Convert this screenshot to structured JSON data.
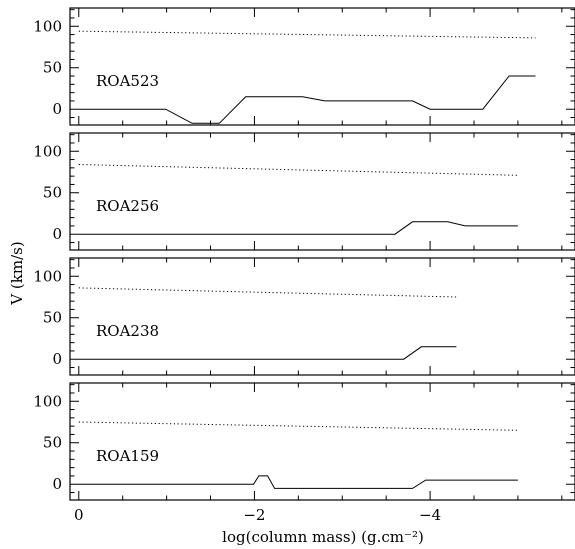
{
  "chart_data": {
    "type": "line",
    "xlabel": "log(column mass) (g.cm⁻²)",
    "ylabel": "V (km/s)",
    "x_reversed": true,
    "xlim": [
      0.1,
      -5.65
    ],
    "ylim": [
      -19,
      122
    ],
    "x_ticks": [
      0,
      -2,
      -4
    ],
    "x_tick_labels": [
      "0",
      "−2",
      "−4"
    ],
    "y_ticks": [
      0,
      50,
      100
    ],
    "y_tick_labels": [
      "0",
      "50",
      "100"
    ],
    "panels": [
      {
        "label": "ROA523",
        "series": [
          {
            "style": "solid",
            "points": [
              [
                0.0,
                0
              ],
              [
                -0.99,
                0
              ],
              [
                -1.29,
                -17
              ],
              [
                -1.6,
                -17
              ],
              [
                -1.9,
                15
              ],
              [
                -2.55,
                15
              ],
              [
                -2.8,
                10
              ],
              [
                -3.8,
                10
              ],
              [
                -4.0,
                0
              ],
              [
                -4.6,
                0
              ],
              [
                -4.9,
                40
              ],
              [
                -5.2,
                40
              ]
            ]
          },
          {
            "style": "dotted",
            "points": [
              [
                0.0,
                94
              ],
              [
                -5.2,
                86
              ]
            ]
          }
        ]
      },
      {
        "label": "ROA256",
        "series": [
          {
            "style": "solid",
            "points": [
              [
                0.0,
                0
              ],
              [
                -3.6,
                0
              ],
              [
                -3.8,
                15
              ],
              [
                -4.2,
                15
              ],
              [
                -4.4,
                10
              ],
              [
                -5.0,
                10
              ]
            ]
          },
          {
            "style": "dotted",
            "points": [
              [
                0.0,
                84
              ],
              [
                -5.0,
                71
              ]
            ]
          }
        ]
      },
      {
        "label": "ROA238",
        "series": [
          {
            "style": "solid",
            "points": [
              [
                0.0,
                0
              ],
              [
                -3.7,
                0
              ],
              [
                -3.9,
                15
              ],
              [
                -4.3,
                15
              ]
            ]
          },
          {
            "style": "dotted",
            "points": [
              [
                0.0,
                86
              ],
              [
                -4.3,
                75
              ]
            ]
          }
        ]
      },
      {
        "label": "ROA159",
        "series": [
          {
            "style": "solid",
            "points": [
              [
                0.0,
                0
              ],
              [
                -1.99,
                0
              ],
              [
                -2.05,
                10
              ],
              [
                -2.15,
                10
              ],
              [
                -2.23,
                -5
              ],
              [
                -3.8,
                -5
              ],
              [
                -3.95,
                5
              ],
              [
                -5.0,
                5
              ]
            ]
          },
          {
            "style": "dotted",
            "points": [
              [
                0.0,
                75
              ],
              [
                -5.0,
                65
              ]
            ]
          }
        ]
      }
    ]
  }
}
